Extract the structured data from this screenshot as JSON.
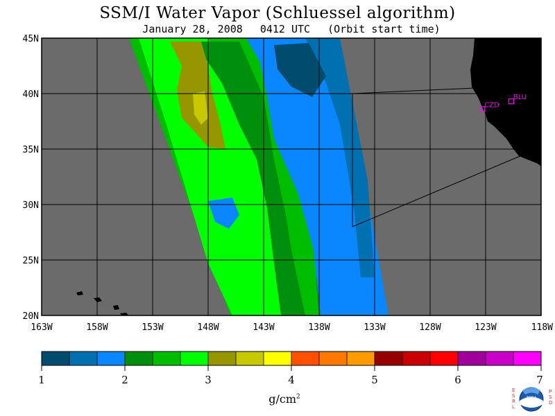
{
  "title": "SSM/I Water Vapor (Schluessel algorithm)",
  "subtitle": {
    "date": "January 28, 2008",
    "time": "0412 UTC",
    "note": "(Orbit start time)"
  },
  "map": {
    "lon_range": [
      -163,
      -118
    ],
    "lat_range": [
      20,
      45
    ],
    "lon_ticks": [
      {
        "v": -163,
        "label": "163W"
      },
      {
        "v": -158,
        "label": "158W"
      },
      {
        "v": -153,
        "label": "153W"
      },
      {
        "v": -148,
        "label": "148W"
      },
      {
        "v": -143,
        "label": "143W"
      },
      {
        "v": -138,
        "label": "138W"
      },
      {
        "v": -133,
        "label": "133W"
      },
      {
        "v": -128,
        "label": "128W"
      },
      {
        "v": -123,
        "label": "123W"
      },
      {
        "v": -118,
        "label": "118W"
      }
    ],
    "lat_ticks": [
      {
        "v": 45,
        "label": "45N"
      },
      {
        "v": 40,
        "label": "40N"
      },
      {
        "v": 35,
        "label": "35N"
      },
      {
        "v": 30,
        "label": "30N"
      },
      {
        "v": 25,
        "label": "25N"
      },
      {
        "v": 20,
        "label": "20N"
      }
    ],
    "stations": [
      {
        "id": "CZD",
        "lon": -123.3,
        "lat": 38.6
      },
      {
        "id": "BLU",
        "lon": -120.7,
        "lat": 39.3
      }
    ],
    "colors": {
      "background": "#6b6b6b",
      "land": "#000000",
      "station": "#ff00ff"
    }
  },
  "colorbar": {
    "min": 1,
    "max": 7,
    "colors": [
      "#004b6e",
      "#0070b0",
      "#0a86ff",
      "#008f0c",
      "#00bd00",
      "#00ff00",
      "#969600",
      "#c8c800",
      "#ffff00",
      "#ff5000",
      "#ff7800",
      "#ff9b00",
      "#960000",
      "#c80000",
      "#ff0000",
      "#a0009b",
      "#c800c8",
      "#ff00ff"
    ],
    "labels": [
      "1",
      "2",
      "3",
      "4",
      "5",
      "6",
      "7"
    ],
    "units": "g/cm",
    "units_sup": "2"
  },
  "logo": {
    "left_text": "ESRL",
    "right_text": "PSD",
    "center_text": "NOAA"
  }
}
